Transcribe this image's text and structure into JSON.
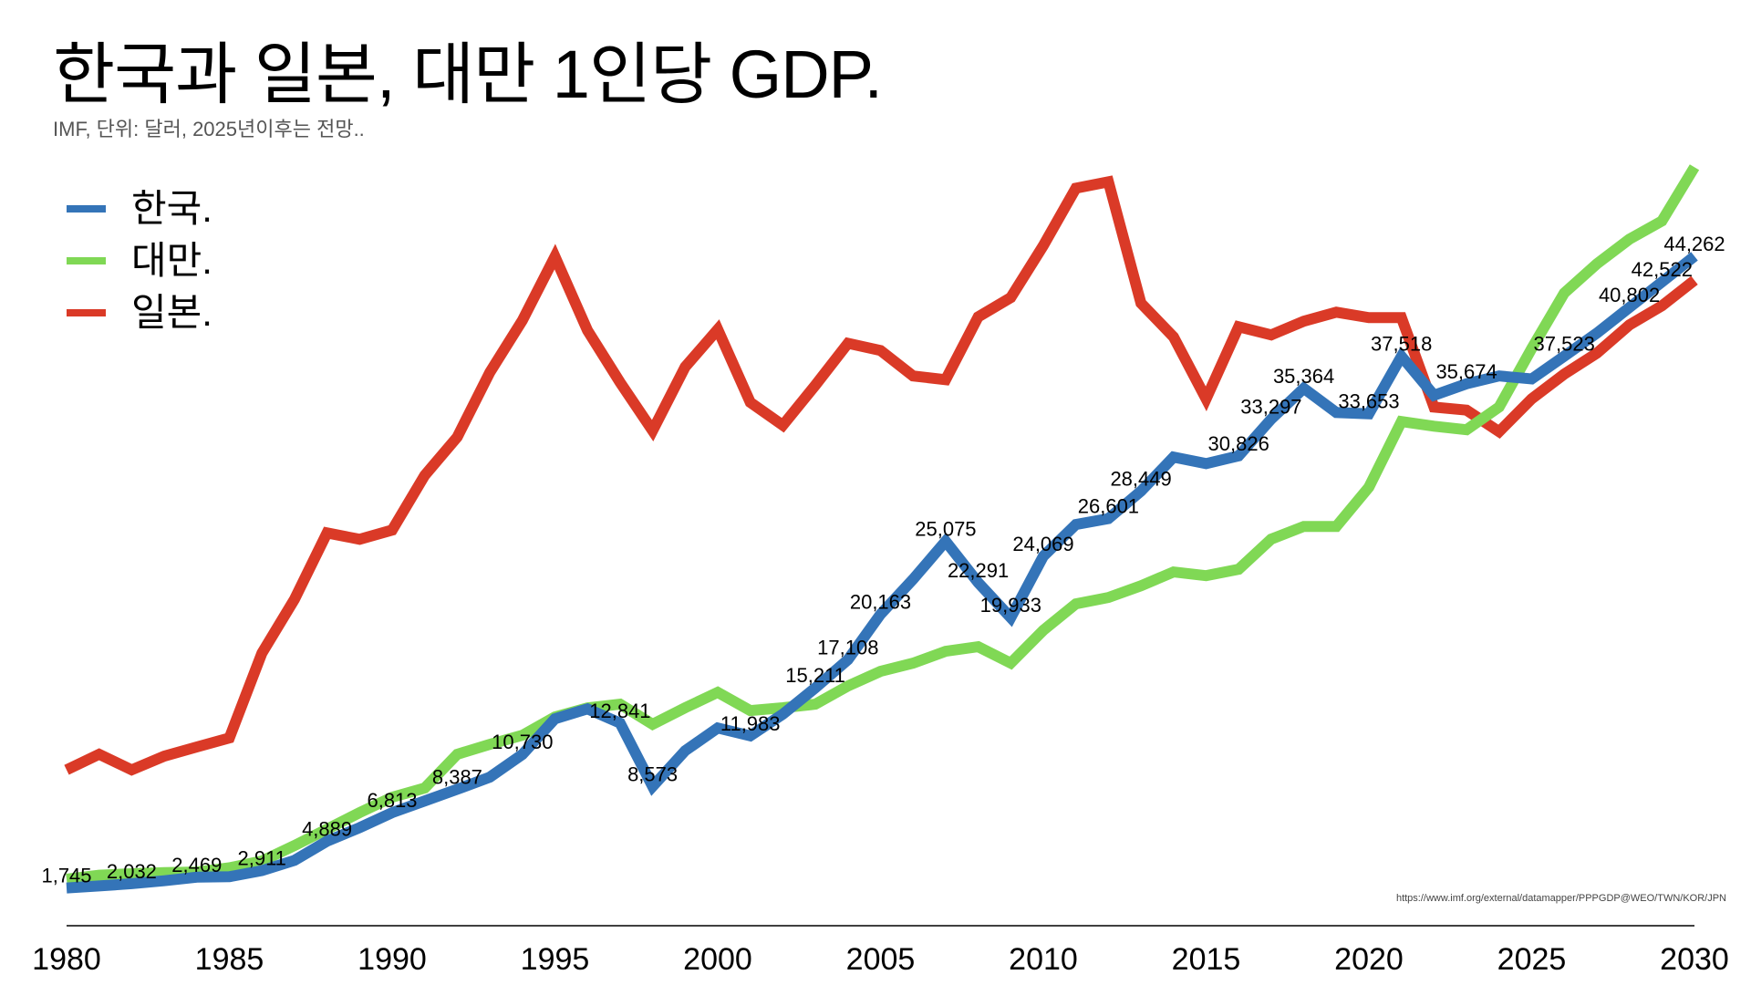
{
  "title": "한국과 일본, 대만 1인당 GDP.",
  "subtitle": "IMF, 단위: 달러, 2025년이후는 전망..",
  "source": "https://www.imf.org/external/datamapper/PPPGDP@WEO/TWN/KOR/JPN",
  "legend": [
    {
      "label": "한국.",
      "color": "#3474B8"
    },
    {
      "label": "대만.",
      "color": "#80D855"
    },
    {
      "label": "일본.",
      "color": "#DA3A27"
    }
  ],
  "chart_data": {
    "type": "line",
    "title": "한국과 일본, 대만 1인당 GDP.",
    "subtitle": "IMF, 단위: 달러, 2025년이후는 전망..",
    "xlabel": "",
    "ylabel": "",
    "xlim": [
      1980,
      2030
    ],
    "ylim": [
      0,
      61500
    ],
    "grid": false,
    "legend_position": "top-left",
    "x_ticks": [
      "1980",
      "1985",
      "1990",
      "1995",
      "2000",
      "2005",
      "2010",
      "2015",
      "2020",
      "2025",
      "2030"
    ],
    "x": [
      1980,
      1981,
      1982,
      1983,
      1984,
      1985,
      1986,
      1987,
      1988,
      1989,
      1990,
      1991,
      1992,
      1993,
      1994,
      1995,
      1996,
      1997,
      1998,
      1999,
      2000,
      2001,
      2002,
      2003,
      2004,
      2005,
      2006,
      2007,
      2008,
      2009,
      2010,
      2011,
      2012,
      2013,
      2014,
      2015,
      2016,
      2017,
      2018,
      2019,
      2020,
      2021,
      2022,
      2023,
      2024,
      2025,
      2026,
      2027,
      2028,
      2029,
      2030
    ],
    "series": [
      {
        "name": "한국.",
        "color": "#3474B8",
        "values": [
          1745,
          1880,
          2032,
          2230,
          2469,
          2500,
          2911,
          3600,
          4889,
          5800,
          6813,
          7600,
          8387,
          9200,
          10730,
          13130,
          13800,
          12841,
          8573,
          10980,
          12510,
          11983,
          13440,
          15211,
          17108,
          20163,
          22520,
          25075,
          22291,
          19933,
          24069,
          26200,
          26601,
          28449,
          30740,
          30300,
          30826,
          33297,
          35364,
          33740,
          33653,
          37518,
          34900,
          35674,
          36200,
          36000,
          37523,
          39080,
          40802,
          42522,
          44262
        ]
      },
      {
        "name": "대만.",
        "color": "#80D855",
        "values": [
          2330,
          2600,
          2700,
          2780,
          2820,
          3100,
          3560,
          4600,
          5700,
          6810,
          7850,
          8470,
          10740,
          11410,
          12020,
          13250,
          13860,
          14110,
          12760,
          13870,
          14910,
          13680,
          13870,
          14110,
          15340,
          16320,
          16870,
          17670,
          17980,
          16870,
          19080,
          20860,
          21290,
          22080,
          23010,
          22760,
          23190,
          25220,
          26070,
          26070,
          28710,
          33130,
          32820,
          32580,
          34110,
          38040,
          41780,
          43740,
          45400,
          46630,
          50250
        ]
      },
      {
        "name": "일본.",
        "color": "#DA3A27",
        "values": [
          9690,
          10740,
          9690,
          10610,
          11230,
          11840,
          17550,
          21170,
          25640,
          25210,
          25830,
          29510,
          32090,
          36440,
          39940,
          44230,
          39260,
          35770,
          32520,
          36810,
          39330,
          34420,
          32880,
          35580,
          38400,
          37910,
          36200,
          35950,
          40180,
          41470,
          44970,
          48830,
          49260,
          41100,
          38830,
          34660,
          39510,
          38960,
          39880,
          40490,
          40120,
          40120,
          34100,
          33900,
          32450,
          34660,
          36320,
          37730,
          39630,
          40920,
          42640
        ]
      }
    ],
    "data_labels": [
      {
        "series": "한국.",
        "x": 1980,
        "text": "1,745"
      },
      {
        "series": "한국.",
        "x": 1982,
        "text": "2,032"
      },
      {
        "series": "한국.",
        "x": 1984,
        "text": "2,469"
      },
      {
        "series": "한국.",
        "x": 1986,
        "text": "2,911"
      },
      {
        "series": "한국.",
        "x": 1988,
        "text": "4,889"
      },
      {
        "series": "한국.",
        "x": 1990,
        "text": "6,813"
      },
      {
        "series": "한국.",
        "x": 1992,
        "text": "8,387"
      },
      {
        "series": "한국.",
        "x": 1994,
        "text": "10,730"
      },
      {
        "series": "한국.",
        "x": 1997,
        "text": "12,841"
      },
      {
        "series": "한국.",
        "x": 1998,
        "text": "8,573"
      },
      {
        "series": "한국.",
        "x": 2001,
        "text": "11,983"
      },
      {
        "series": "한국.",
        "x": 2003,
        "text": "15,211"
      },
      {
        "series": "한국.",
        "x": 2004,
        "text": "17,108"
      },
      {
        "series": "한국.",
        "x": 2005,
        "text": "20,163"
      },
      {
        "series": "한국.",
        "x": 2007,
        "text": "25,075"
      },
      {
        "series": "한국.",
        "x": 2008,
        "text": "22,291"
      },
      {
        "series": "한국.",
        "x": 2009,
        "text": "19,933"
      },
      {
        "series": "한국.",
        "x": 2010,
        "text": "24,069"
      },
      {
        "series": "한국.",
        "x": 2012,
        "text": "26,601"
      },
      {
        "series": "한국.",
        "x": 2013,
        "text": "28,449"
      },
      {
        "series": "한국.",
        "x": 2016,
        "text": "30,826"
      },
      {
        "series": "한국.",
        "x": 2017,
        "text": "33,297"
      },
      {
        "series": "한국.",
        "x": 2018,
        "text": "35,364"
      },
      {
        "series": "한국.",
        "x": 2020,
        "text": "33,653"
      },
      {
        "series": "한국.",
        "x": 2021,
        "text": "37,518"
      },
      {
        "series": "한국.",
        "x": 2023,
        "text": "35,674"
      },
      {
        "series": "한국.",
        "x": 2026,
        "text": "37,523"
      },
      {
        "series": "한국.",
        "x": 2028,
        "text": "40,802"
      },
      {
        "series": "한국.",
        "x": 2029,
        "text": "42,522"
      },
      {
        "series": "한국.",
        "x": 2030,
        "text": "44,262"
      }
    ]
  }
}
